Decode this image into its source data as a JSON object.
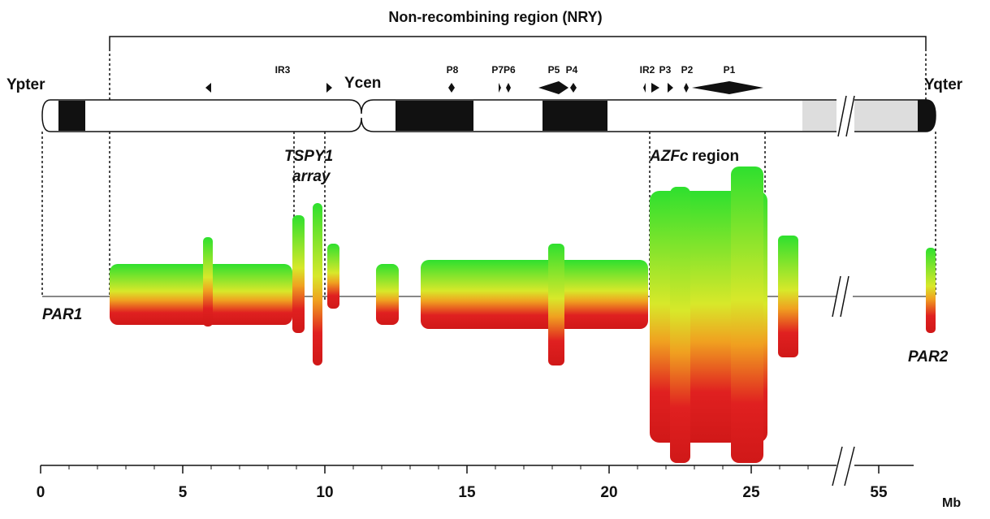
{
  "title": "Non-recombining region (NRY)",
  "chromosome": {
    "left_end": "Ypter",
    "centromere": "Ycen",
    "right_end": "Yqter",
    "features": [
      "IR3",
      "P8",
      "P7P6",
      "P5",
      "P4",
      "IR2",
      "P3",
      "P2",
      "P1"
    ]
  },
  "regions": {
    "tspy_1": "TSPY1",
    "tspy_2": "array",
    "azfc_1": "AZFc",
    "azfc_2": "region",
    "par1": "PAR1",
    "par2": "PAR2"
  },
  "axis": {
    "ticks": [
      0,
      5,
      10,
      15,
      20,
      25,
      55
    ],
    "unit": "Mb"
  }
}
